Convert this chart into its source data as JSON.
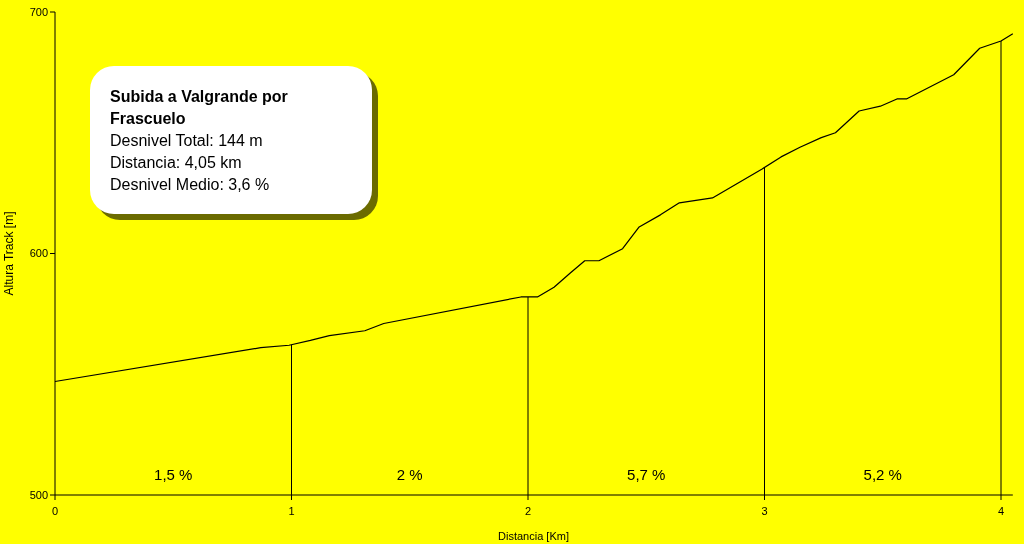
{
  "chart_data": {
    "type": "line",
    "title": "Subida a Valgrande por Frascuelo",
    "xlabel": "Distancia [Km]",
    "ylabel": "Altura Track [m]",
    "x": [
      0,
      0.87,
      0.99,
      1.08,
      1.16,
      1.31,
      1.39,
      1.97,
      2.04,
      2.11,
      2.18,
      2.24,
      2.3,
      2.4,
      2.47,
      2.56,
      2.64,
      2.78,
      2.99,
      3.07,
      3.15,
      3.24,
      3.3,
      3.4,
      3.49,
      3.56,
      3.6,
      3.8,
      3.91,
      4.0,
      4.05
    ],
    "series": [
      {
        "color": "#000000",
        "values": [
          547,
          561,
          562,
          564,
          566,
          568,
          571,
          582,
          582,
          586,
          592,
          597,
          597,
          602,
          611,
          616,
          621,
          623,
          635,
          640,
          644,
          648,
          650,
          659,
          661,
          664,
          664,
          674,
          685,
          688,
          691
        ]
      }
    ],
    "xlim": [
      0,
      4.05
    ],
    "ylim": [
      500,
      700
    ],
    "xticks": [
      0,
      1,
      2,
      3,
      4
    ],
    "yticks": [
      500,
      600,
      700
    ],
    "grid": false,
    "marker": "none",
    "line_style": "solid",
    "ref_lines": [
      {
        "axis": "x",
        "value": 1
      },
      {
        "axis": "x",
        "value": 2
      },
      {
        "axis": "x",
        "value": 3
      },
      {
        "axis": "x",
        "value": 4
      }
    ],
    "annotations": [
      "Desnivel Total: 144 m",
      "Distancia: 4,05 km",
      "Desnivel Medio: 3,6 %",
      "1,5 %",
      "2 %",
      "5,7 %",
      "5,2 %"
    ]
  }
}
